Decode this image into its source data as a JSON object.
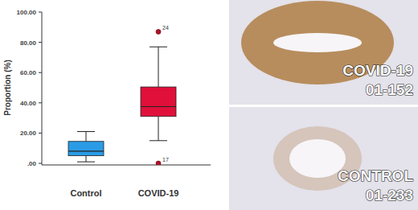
{
  "chart_data": {
    "type": "box",
    "y_label": "Proportion (%)",
    "categories": [
      "Control",
      "COVID-19"
    ],
    "colors": [
      "#2b9be6",
      "#e0103a"
    ],
    "boxes": [
      {
        "min": 1,
        "q1": 5,
        "median": 8,
        "q3": 14.5,
        "max": 21,
        "outliers": []
      },
      {
        "min": 15,
        "q1": 31,
        "median": 37.5,
        "q3": 50.5,
        "max": 77,
        "outliers": [
          {
            "value": 87,
            "label": "24"
          },
          {
            "value": 0,
            "label": "17"
          }
        ]
      }
    ],
    "ylim": [
      0,
      100
    ],
    "yticks": [
      {
        "value": 0,
        "label": ".00"
      },
      {
        "value": 20,
        "label": "20.00"
      },
      {
        "value": 40,
        "label": "40.00"
      },
      {
        "value": 60,
        "label": "60.00"
      },
      {
        "value": 80,
        "label": "80.00"
      },
      {
        "value": 100,
        "label": "100.00"
      }
    ],
    "grid": false
  },
  "images": [
    {
      "title": "COVID-19",
      "id": "01-152"
    },
    {
      "title": "CONTROL",
      "id": "01-233"
    }
  ]
}
